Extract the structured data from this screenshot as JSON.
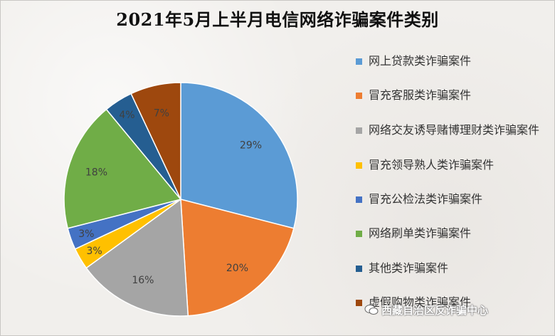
{
  "title": "2021年5月上半月电信网络诈骗案件类别",
  "watermark": "西藏自治区反诈骗中心",
  "chart_data": {
    "type": "pie",
    "title": "2021年5月上半月电信网络诈骗案件类别",
    "legend_position": "right",
    "slices": [
      {
        "label": "网上贷款类诈骗案件",
        "value": 29,
        "display": "29%",
        "color": "#5b9bd5"
      },
      {
        "label": "冒充客服类诈骗案件",
        "value": 20,
        "display": "20%",
        "color": "#ed7d31"
      },
      {
        "label": "网络交友诱导赌博理财类诈骗案件",
        "value": 16,
        "display": "16%",
        "color": "#a5a5a5"
      },
      {
        "label": "冒充领导熟人类诈骗案件",
        "value": 3,
        "display": "3%",
        "color": "#ffc000"
      },
      {
        "label": "冒充公检法类诈骗案件",
        "value": 3,
        "display": "3%",
        "color": "#4472c4"
      },
      {
        "label": "网络刷单类诈骗案件",
        "value": 18,
        "display": "18%",
        "color": "#70ad47"
      },
      {
        "label": "其他类诈骗案件",
        "value": 4,
        "display": "4%",
        "color": "#255e91"
      },
      {
        "label": "虚假购物类诈骗案件",
        "value": 7,
        "display": "7%",
        "color": "#9e480e"
      }
    ]
  }
}
